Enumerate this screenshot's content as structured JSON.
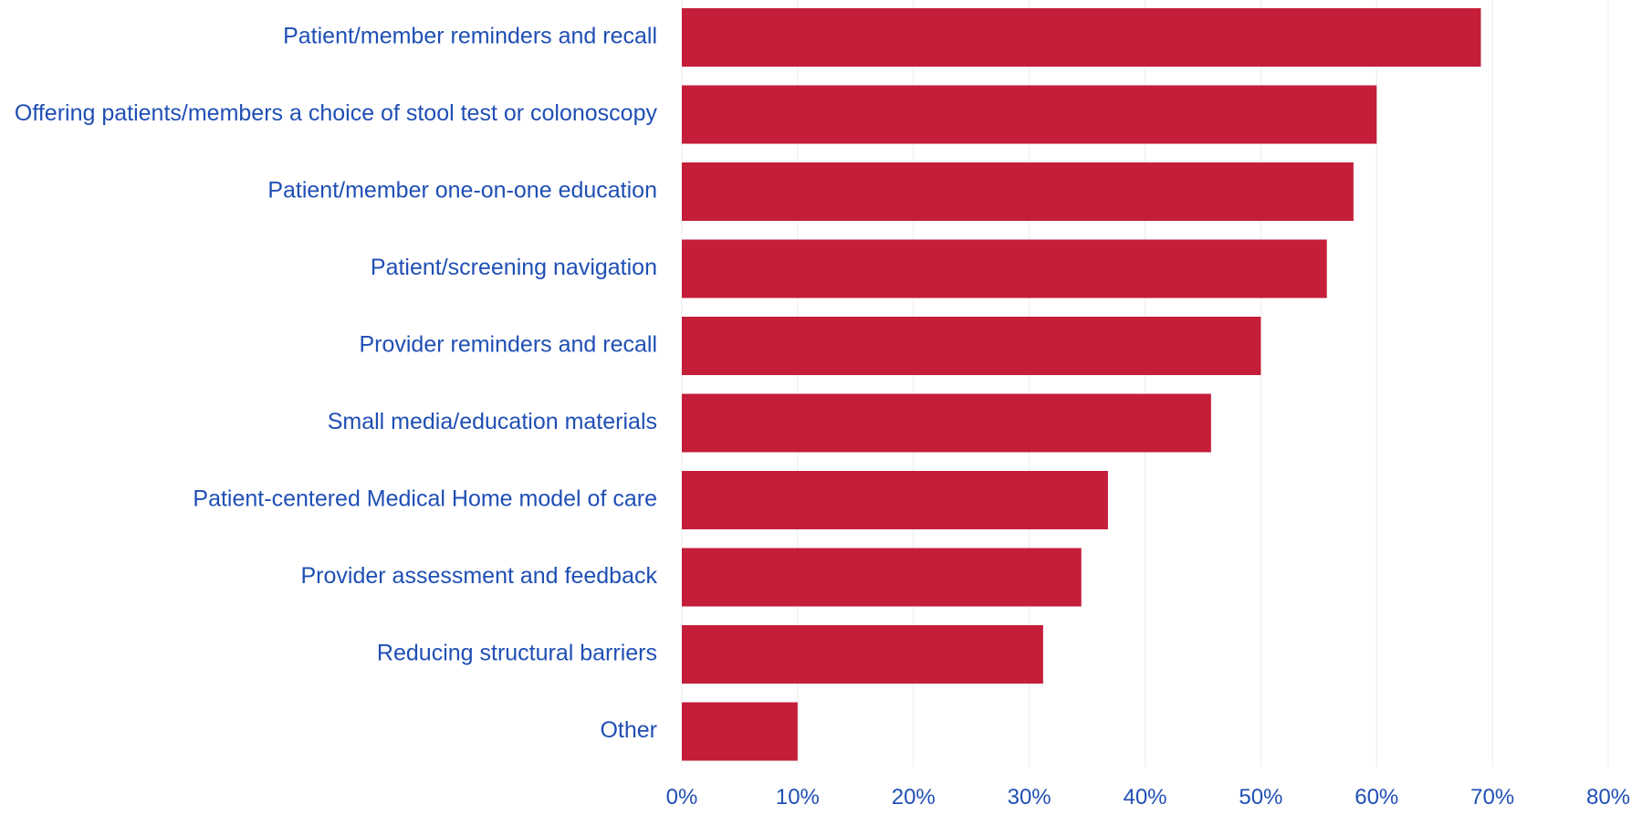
{
  "chart_data": {
    "type": "bar",
    "orientation": "horizontal",
    "title": "",
    "xlabel": "",
    "ylabel": "",
    "categories": [
      "Patient/member reminders and recall",
      "Offering patients/members a choice of stool test or colonoscopy",
      "Patient/member one-on-one education",
      "Patient/screening navigation",
      "Provider reminders and recall",
      "Small media/education materials",
      "Patient-centered Medical Home model of care",
      "Provider assessment and feedback",
      "Reducing structural barriers",
      "Other"
    ],
    "values": [
      69,
      60,
      58,
      55.7,
      50,
      45.7,
      36.8,
      34.5,
      31.2,
      10
    ],
    "xlim": [
      0,
      80
    ],
    "xticks": [
      0,
      10,
      20,
      30,
      40,
      50,
      60,
      70,
      80
    ],
    "xtick_labels": [
      "0%",
      "10%",
      "20%",
      "30%",
      "40%",
      "50%",
      "60%",
      "70%",
      "80%"
    ],
    "grid": true,
    "legend": "none",
    "colors": {
      "bar": "#c41e3a",
      "label": "#1f4fb4",
      "grid": "#ececec"
    }
  }
}
